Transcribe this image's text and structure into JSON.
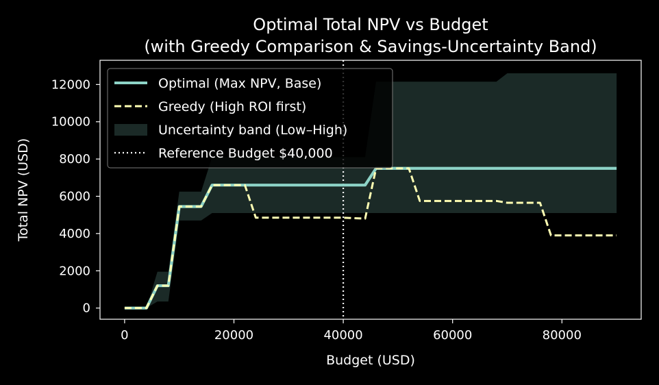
{
  "chart_data": {
    "type": "line",
    "title_line1": "Optimal Total NPV vs Budget",
    "title_line2": "(with Greedy Comparison & Savings-Uncertainty Band)",
    "xlabel": "Budget (USD)",
    "ylabel": "Total NPV (USD)",
    "xlim": [
      -4500,
      94500
    ],
    "ylim": [
      -600,
      13300
    ],
    "xticks": [
      0,
      20000,
      40000,
      60000,
      80000
    ],
    "yticks": [
      0,
      2000,
      4000,
      6000,
      8000,
      10000,
      12000
    ],
    "grid": false,
    "legend_position": "top-left",
    "series": [
      {
        "name": "Optimal (Max NPV, Base)",
        "color": "#8dd3c7",
        "style": "solid",
        "points": [
          [
            0,
            0
          ],
          [
            4000,
            0
          ],
          [
            6000,
            1200
          ],
          [
            8000,
            1200
          ],
          [
            10000,
            5450
          ],
          [
            14000,
            5450
          ],
          [
            16000,
            6600
          ],
          [
            22000,
            6600
          ],
          [
            44000,
            6600
          ],
          [
            46000,
            7500
          ],
          [
            90000,
            7500
          ]
        ]
      },
      {
        "name": "Greedy (High ROI first)",
        "color": "#ffffb3",
        "style": "dashed",
        "points": [
          [
            0,
            0
          ],
          [
            4000,
            0
          ],
          [
            6000,
            1200
          ],
          [
            8000,
            1200
          ],
          [
            10000,
            5450
          ],
          [
            14000,
            5450
          ],
          [
            16000,
            6600
          ],
          [
            22000,
            6600
          ],
          [
            24000,
            4850
          ],
          [
            40000,
            4850
          ],
          [
            44000,
            4800
          ],
          [
            46000,
            7500
          ],
          [
            52000,
            7500
          ],
          [
            54000,
            5750
          ],
          [
            68000,
            5750
          ],
          [
            70000,
            5650
          ],
          [
            76000,
            5650
          ],
          [
            78000,
            3900
          ],
          [
            90000,
            3900
          ]
        ]
      }
    ],
    "band": {
      "name": "Uncertainty band (Low–High)",
      "color": "#1b2a27",
      "x": [
        0,
        4000,
        6000,
        8000,
        10000,
        14000,
        16000,
        22000,
        24000,
        44000,
        46000,
        68000,
        70000,
        90000
      ],
      "low": [
        0,
        0,
        350,
        350,
        4700,
        4700,
        5100,
        5100,
        5100,
        5100,
        5100,
        5100,
        5100,
        5100
      ],
      "high": [
        0,
        0,
        1950,
        1950,
        6250,
        6250,
        8100,
        8100,
        8100,
        8100,
        12150,
        12150,
        12600,
        12600
      ]
    },
    "reference_line": {
      "name": "Reference Budget $40,000",
      "x": 40000,
      "color": "#ffffff",
      "style": "dotted"
    }
  }
}
